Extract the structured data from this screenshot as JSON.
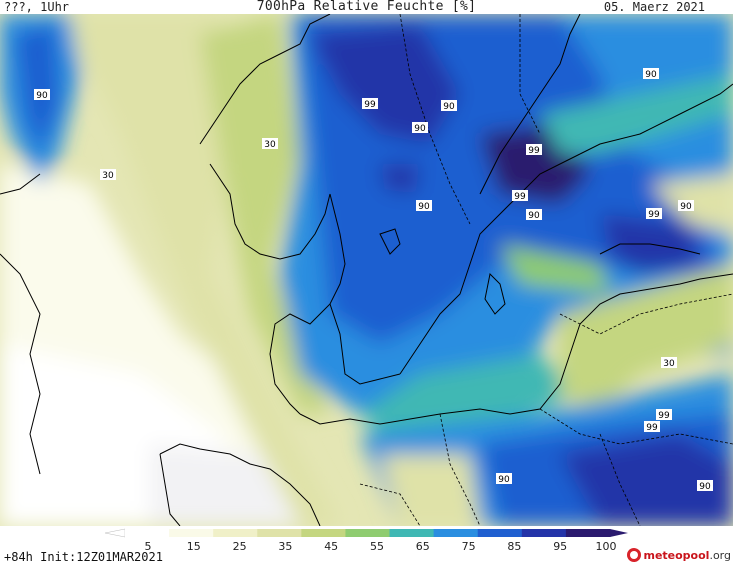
{
  "header": {
    "left": "???, 1Uhr",
    "title": "700hPa Relative Feuchte [%]",
    "date": "05. Maerz 2021"
  },
  "footer": {
    "run_info": "+84h Init:12Z01MAR2021",
    "logo_main": "meteopool",
    "logo_tld": ".org"
  },
  "colorbar": {
    "ticks": [
      "5",
      "15",
      "25",
      "35",
      "45",
      "55",
      "65",
      "75",
      "85",
      "95",
      "100"
    ],
    "colors": [
      "#ffffff",
      "#fafae8",
      "#f0f0c8",
      "#dfe2a8",
      "#c4d680",
      "#8fcc70",
      "#3fb8b4",
      "#2a8ee0",
      "#1f5fd0",
      "#2434a8",
      "#2a1a6e"
    ]
  },
  "contour_labels": [
    "90",
    "30",
    "99",
    "90",
    "90",
    "90",
    "99",
    "99",
    "90",
    "99",
    "90",
    "90",
    "30",
    "30",
    "99",
    "99",
    "90",
    "90"
  ]
}
